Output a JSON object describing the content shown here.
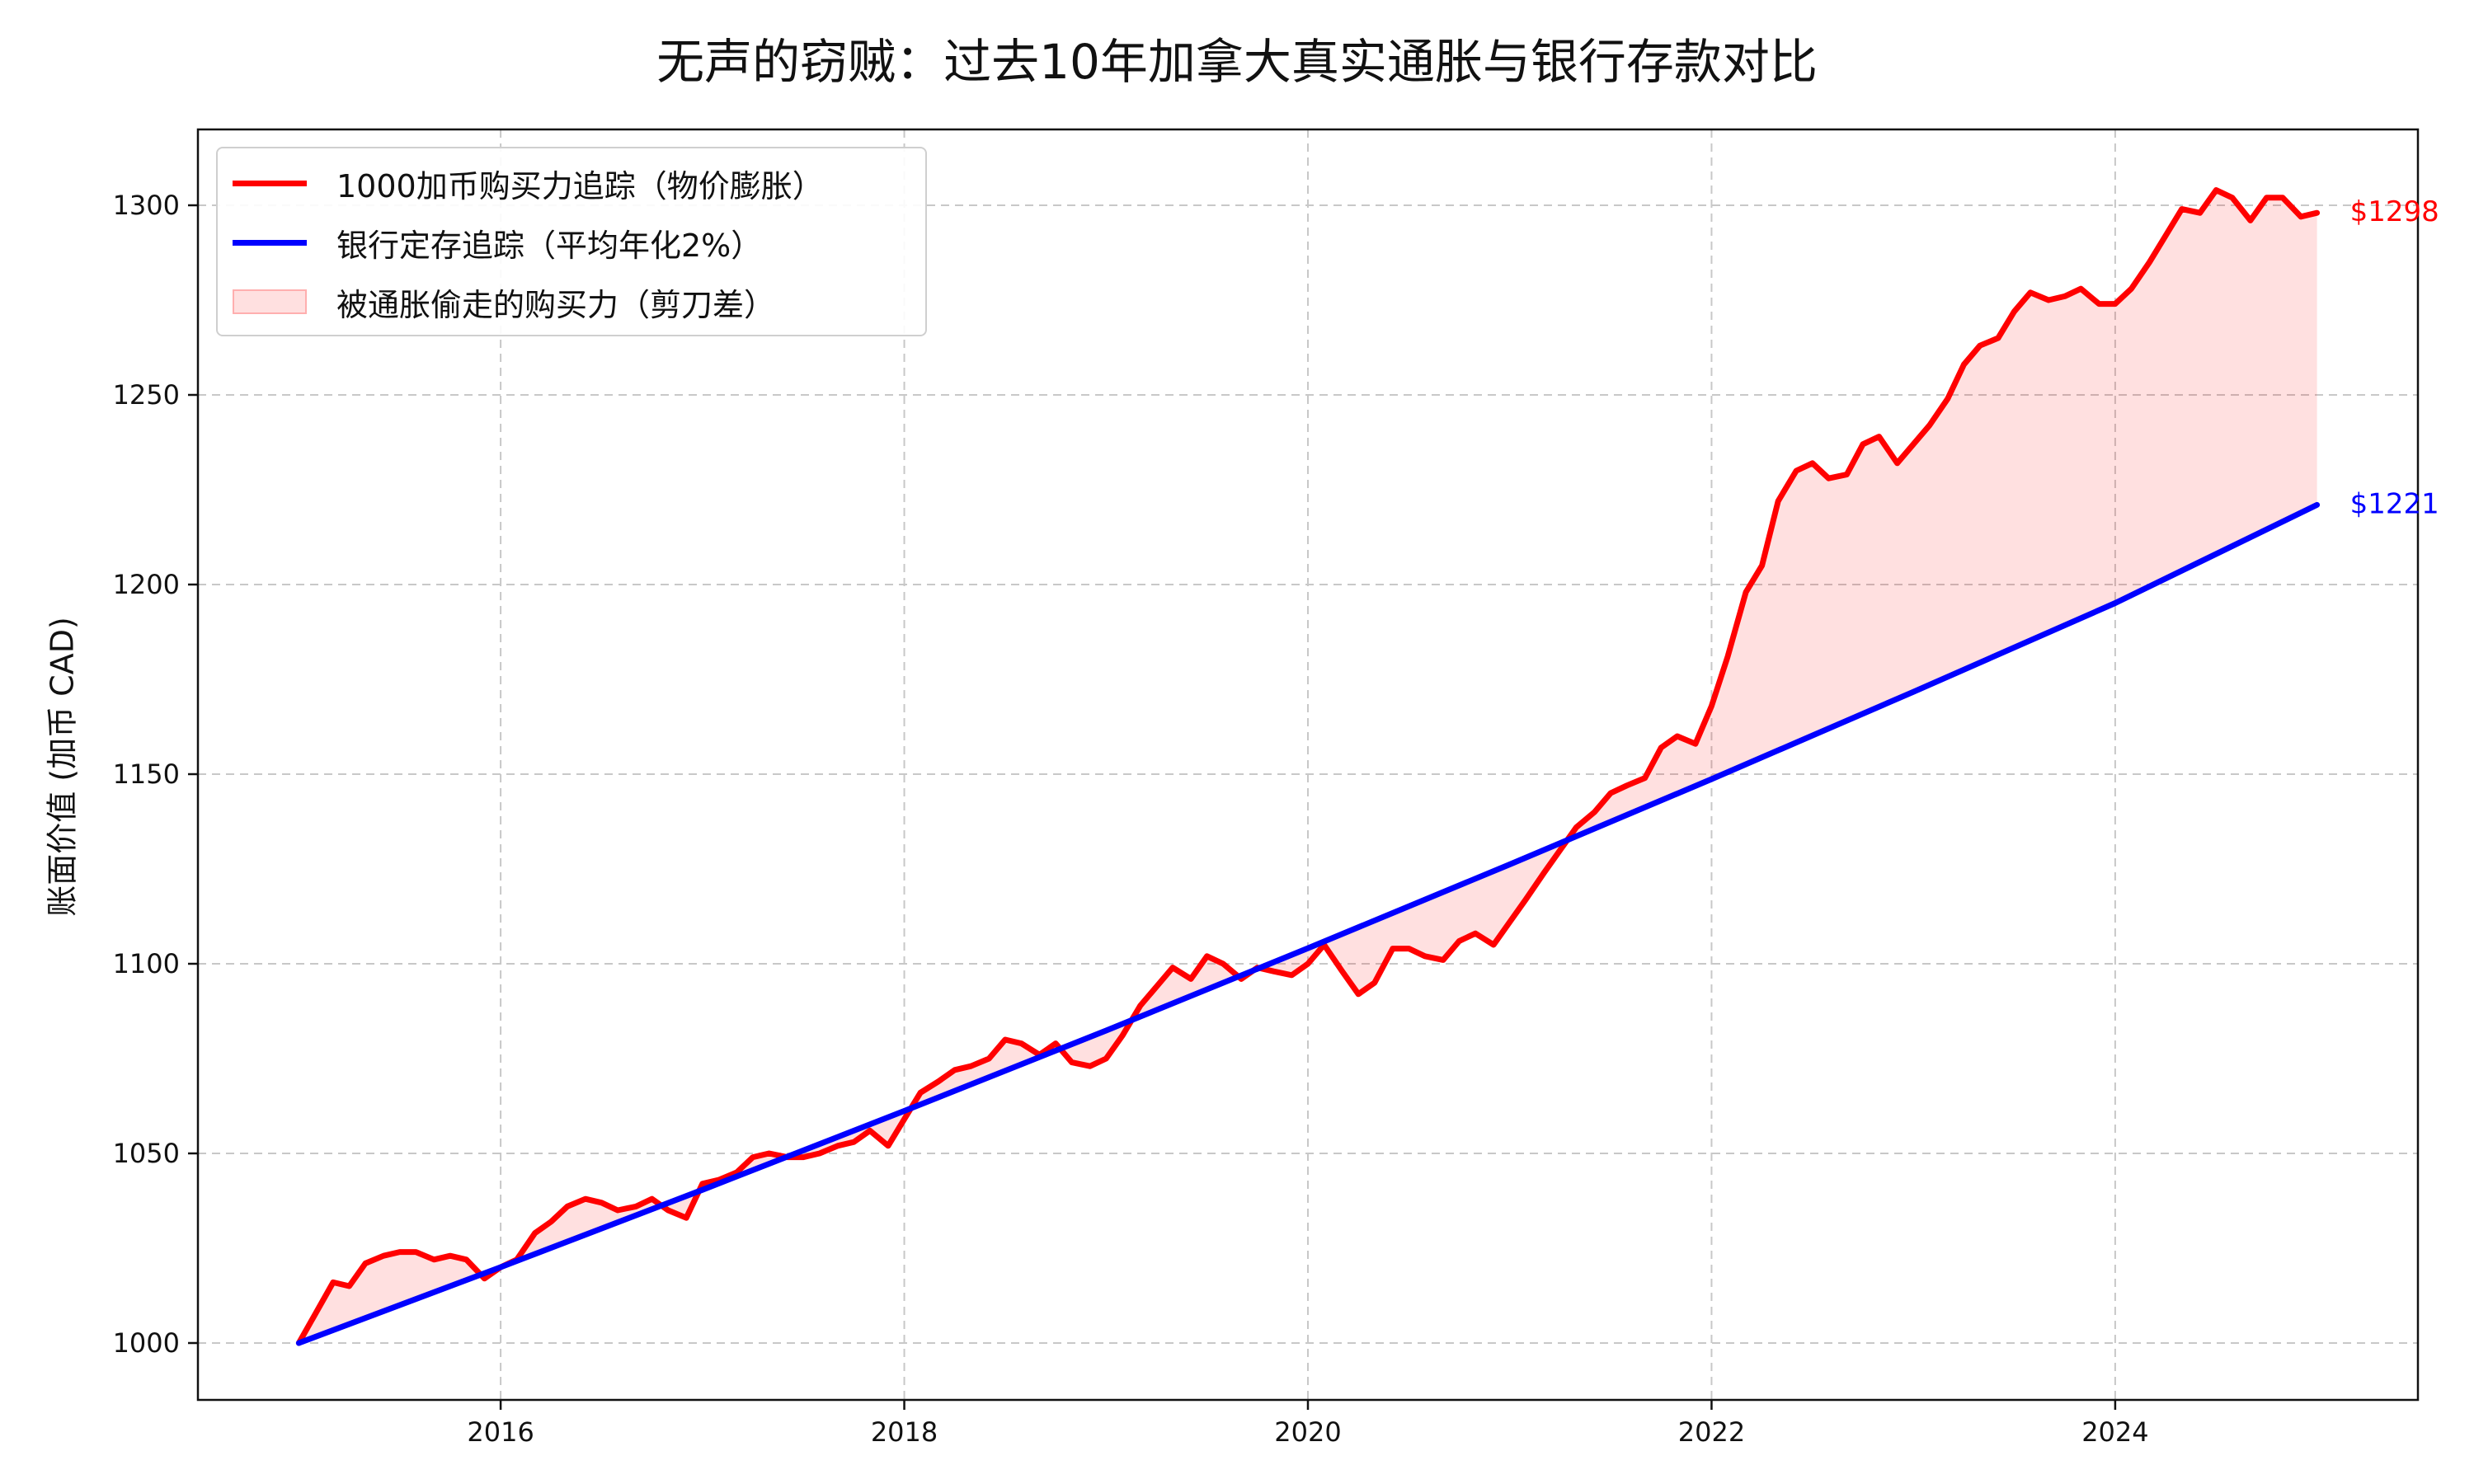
{
  "title": "无声的窃贼：过去10年加拿大真实通胀与银行存款对比",
  "ylabel": "账面价值 (加币 CAD)",
  "colors": {
    "inflation": "#ff0000",
    "bank": "#0000ff",
    "gap_fill": "rgba(255,0,0,0.12)",
    "grid": "#c8c8c8"
  },
  "legend": {
    "placement": "top-left",
    "items": [
      {
        "label": "1000加币购买力追踪（物价膨胀）",
        "kind": "line",
        "color": "#ff0000"
      },
      {
        "label": "银行定存追踪（平均年化2%）",
        "kind": "line",
        "color": "#0000ff"
      },
      {
        "label": "被通胀偷走的购买力（剪刀差）",
        "kind": "fill",
        "color": "rgba(255,0,0,0.12)"
      }
    ]
  },
  "end_labels": {
    "inflation": "$1298",
    "bank": "$1221"
  },
  "chart_data": {
    "type": "line",
    "title": "无声的窃贼：过去10年加拿大真实通胀与银行存款对比",
    "xlabel": "",
    "ylabel": "账面价值 (加币 CAD)",
    "xlim": [
      2014.5,
      2025.5
    ],
    "ylim": [
      985,
      1320
    ],
    "xticks": [
      2016,
      2018,
      2020,
      2022,
      2024
    ],
    "yticks": [
      1000,
      1050,
      1100,
      1150,
      1200,
      1250,
      1300
    ],
    "grid": true,
    "legend_position": "top-left",
    "series": [
      {
        "name": "1000加币购买力追踪（物价膨胀）",
        "color": "#ff0000",
        "points": [
          [
            2015.0,
            1000
          ],
          [
            2015.17,
            1016
          ],
          [
            2015.25,
            1015
          ],
          [
            2015.33,
            1021
          ],
          [
            2015.42,
            1023
          ],
          [
            2015.5,
            1024
          ],
          [
            2015.58,
            1024
          ],
          [
            2015.67,
            1022
          ],
          [
            2015.75,
            1023
          ],
          [
            2015.83,
            1022
          ],
          [
            2015.92,
            1017
          ],
          [
            2016.0,
            1020
          ],
          [
            2016.08,
            1022
          ],
          [
            2016.17,
            1029
          ],
          [
            2016.25,
            1032
          ],
          [
            2016.33,
            1036
          ],
          [
            2016.42,
            1038
          ],
          [
            2016.5,
            1037
          ],
          [
            2016.58,
            1035
          ],
          [
            2016.67,
            1036
          ],
          [
            2016.75,
            1038
          ],
          [
            2016.83,
            1035
          ],
          [
            2016.92,
            1033
          ],
          [
            2017.0,
            1042
          ],
          [
            2017.08,
            1043
          ],
          [
            2017.17,
            1045
          ],
          [
            2017.25,
            1049
          ],
          [
            2017.33,
            1050
          ],
          [
            2017.42,
            1049
          ],
          [
            2017.5,
            1049
          ],
          [
            2017.58,
            1050
          ],
          [
            2017.67,
            1052
          ],
          [
            2017.75,
            1053
          ],
          [
            2017.83,
            1056
          ],
          [
            2017.92,
            1052
          ],
          [
            2018.0,
            1059
          ],
          [
            2018.08,
            1066
          ],
          [
            2018.17,
            1069
          ],
          [
            2018.25,
            1072
          ],
          [
            2018.33,
            1073
          ],
          [
            2018.42,
            1075
          ],
          [
            2018.5,
            1080
          ],
          [
            2018.58,
            1079
          ],
          [
            2018.67,
            1076
          ],
          [
            2018.75,
            1079
          ],
          [
            2018.83,
            1074
          ],
          [
            2018.92,
            1073
          ],
          [
            2019.0,
            1075
          ],
          [
            2019.08,
            1081
          ],
          [
            2019.17,
            1089
          ],
          [
            2019.25,
            1094
          ],
          [
            2019.33,
            1099
          ],
          [
            2019.42,
            1096
          ],
          [
            2019.5,
            1102
          ],
          [
            2019.58,
            1100
          ],
          [
            2019.67,
            1096
          ],
          [
            2019.75,
            1099
          ],
          [
            2019.83,
            1098
          ],
          [
            2019.92,
            1097
          ],
          [
            2020.0,
            1100
          ],
          [
            2020.08,
            1105
          ],
          [
            2020.17,
            1098
          ],
          [
            2020.25,
            1092
          ],
          [
            2020.33,
            1095
          ],
          [
            2020.42,
            1104
          ],
          [
            2020.5,
            1104
          ],
          [
            2020.58,
            1102
          ],
          [
            2020.67,
            1101
          ],
          [
            2020.75,
            1106
          ],
          [
            2020.83,
            1108
          ],
          [
            2020.92,
            1105
          ],
          [
            2021.0,
            1111
          ],
          [
            2021.08,
            1117
          ],
          [
            2021.17,
            1124
          ],
          [
            2021.25,
            1130
          ],
          [
            2021.33,
            1136
          ],
          [
            2021.42,
            1140
          ],
          [
            2021.5,
            1145
          ],
          [
            2021.58,
            1147
          ],
          [
            2021.67,
            1149
          ],
          [
            2021.75,
            1157
          ],
          [
            2021.83,
            1160
          ],
          [
            2021.92,
            1158
          ],
          [
            2022.0,
            1168
          ],
          [
            2022.08,
            1181
          ],
          [
            2022.17,
            1198
          ],
          [
            2022.25,
            1205
          ],
          [
            2022.33,
            1222
          ],
          [
            2022.42,
            1230
          ],
          [
            2022.5,
            1232
          ],
          [
            2022.58,
            1228
          ],
          [
            2022.67,
            1229
          ],
          [
            2022.75,
            1237
          ],
          [
            2022.83,
            1239
          ],
          [
            2022.92,
            1232
          ],
          [
            2023.0,
            1237
          ],
          [
            2023.08,
            1242
          ],
          [
            2023.17,
            1249
          ],
          [
            2023.25,
            1258
          ],
          [
            2023.33,
            1263
          ],
          [
            2023.42,
            1265
          ],
          [
            2023.5,
            1272
          ],
          [
            2023.58,
            1277
          ],
          [
            2023.67,
            1275
          ],
          [
            2023.75,
            1276
          ],
          [
            2023.83,
            1278
          ],
          [
            2023.92,
            1274
          ],
          [
            2024.0,
            1274
          ],
          [
            2024.08,
            1278
          ],
          [
            2024.17,
            1285
          ],
          [
            2024.25,
            1292
          ],
          [
            2024.33,
            1299
          ],
          [
            2024.42,
            1298
          ],
          [
            2024.5,
            1304
          ],
          [
            2024.58,
            1302
          ],
          [
            2024.67,
            1296
          ],
          [
            2024.75,
            1302
          ],
          [
            2024.83,
            1302
          ],
          [
            2024.92,
            1297
          ],
          [
            2025.0,
            1298
          ]
        ]
      },
      {
        "name": "银行定存追踪（平均年化2%）",
        "color": "#0000ff",
        "points": [
          [
            2015.0,
            1000
          ],
          [
            2016.0,
            1020
          ],
          [
            2017.0,
            1040.4
          ],
          [
            2018.0,
            1061.2
          ],
          [
            2019.0,
            1082.4
          ],
          [
            2020.0,
            1104.1
          ],
          [
            2021.0,
            1126.2
          ],
          [
            2022.0,
            1148.7
          ],
          [
            2023.0,
            1171.7
          ],
          [
            2024.0,
            1195.1
          ],
          [
            2025.0,
            1221
          ]
        ]
      }
    ],
    "annotations": [
      {
        "text": "$1298",
        "x": 2025.0,
        "y": 1298,
        "color": "#ff0000"
      },
      {
        "text": "$1221",
        "x": 2025.0,
        "y": 1221,
        "color": "#0000ff"
      }
    ]
  }
}
